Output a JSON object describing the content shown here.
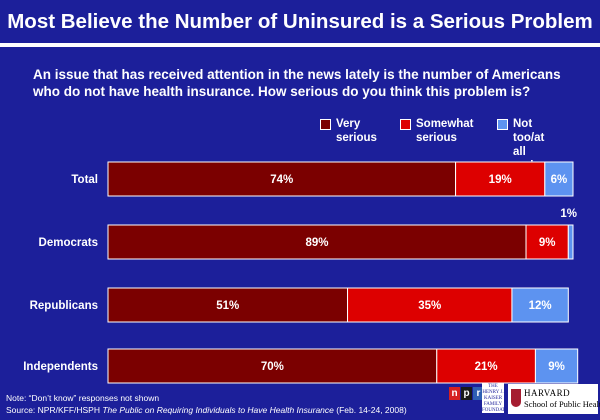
{
  "title": "Most Believe the Number of Uninsured is a Serious Problem",
  "question": "An issue that has received attention in the news lately is the number of Americans who do not have health insurance.  How serious do you think this problem is?",
  "chart_data": {
    "type": "bar",
    "orientation": "horizontal",
    "stacked": true,
    "unit": "%",
    "categories": [
      "Total",
      "Democrats",
      "Republicans",
      "Independents"
    ],
    "series": [
      {
        "name": "Very serious",
        "values": [
          74,
          89,
          51,
          70
        ],
        "color": "#7b0000"
      },
      {
        "name": "Somewhat serious",
        "values": [
          19,
          9,
          35,
          21
        ],
        "color": "#dd0000"
      },
      {
        "name": "Not too/at all serious",
        "values": [
          6,
          1,
          12,
          9
        ],
        "color": "#5d93f0"
      }
    ],
    "data_labels": [
      [
        "74%",
        "19%",
        "6%"
      ],
      [
        "89%",
        "9%",
        "1%"
      ],
      [
        "51%",
        "35%",
        "12%"
      ],
      [
        "70%",
        "21%",
        "9%"
      ]
    ],
    "legend_position": "top-right",
    "grid": false
  },
  "legend": [
    {
      "label": "Very\nserious",
      "color": "#7b0000"
    },
    {
      "label": "Somewhat\nserious",
      "color": "#dd0000"
    },
    {
      "label": "Not too/at\nall serious",
      "color": "#5d93f0"
    }
  ],
  "footer": {
    "note": "Note: “Don’t know” responses not shown",
    "source_prefix": "Source: NPR/KFF/HSPH ",
    "source_title": "The Public on Requiring Individuals to Have Health Insurance",
    "source_suffix": " (Feb. 14-24, 2008)"
  },
  "logos": {
    "npr_letters": [
      "n",
      "p",
      "r"
    ],
    "npr_colors": [
      "#d62021",
      "#1a1a1a",
      "#2f5fb3"
    ],
    "kff_text": "THE HENRY J.\nKAISER\nFAMILY\nFOUNDATION",
    "harvard_line1": "HARVARD",
    "harvard_line2": "School of Public Health"
  }
}
